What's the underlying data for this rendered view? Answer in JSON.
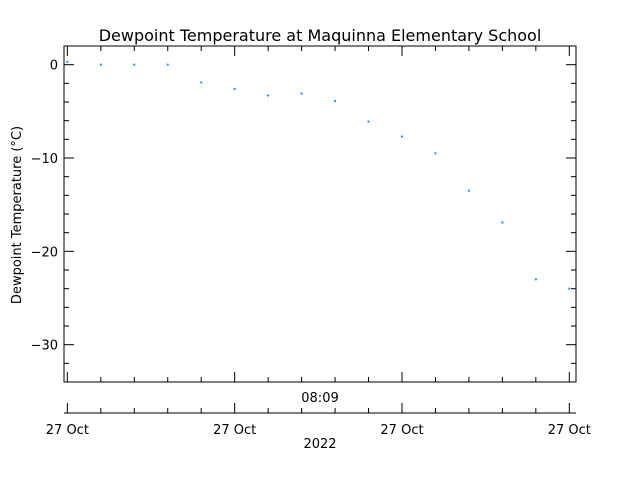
{
  "chart_data": {
    "type": "scatter",
    "title": "Dewpoint Temperature at Maquinna Elementary School",
    "ylabel": "Dewpoint Temperature (°C)",
    "ylim": [
      -34,
      2
    ],
    "yticks": [
      0,
      -10,
      -20,
      -30
    ],
    "x_range": [
      -0.1,
      15.2
    ],
    "x_ticks": [
      0,
      5,
      10,
      15
    ],
    "xtick_labels": [
      "27 Oct",
      "27 Oct",
      "27 Oct",
      "27 Oct"
    ],
    "x_time_label": "08:09",
    "x_year_label": "2022",
    "grid": false,
    "marker_color": "#1e90ff",
    "points": [
      {
        "x": 0,
        "y": 0.3
      },
      {
        "x": 1,
        "y": 0.0
      },
      {
        "x": 2,
        "y": 0.0
      },
      {
        "x": 3,
        "y": 0.0
      },
      {
        "x": 4,
        "y": -1.9
      },
      {
        "x": 5,
        "y": -2.6
      },
      {
        "x": 6,
        "y": -3.3
      },
      {
        "x": 7,
        "y": -3.1
      },
      {
        "x": 8,
        "y": -3.9
      },
      {
        "x": 9,
        "y": -6.1
      },
      {
        "x": 10,
        "y": -7.7
      },
      {
        "x": 11,
        "y": -9.5
      },
      {
        "x": 12,
        "y": -13.5
      },
      {
        "x": 13,
        "y": -16.9
      },
      {
        "x": 14,
        "y": -23.0
      },
      {
        "x": 15,
        "y": -24.0
      }
    ]
  }
}
